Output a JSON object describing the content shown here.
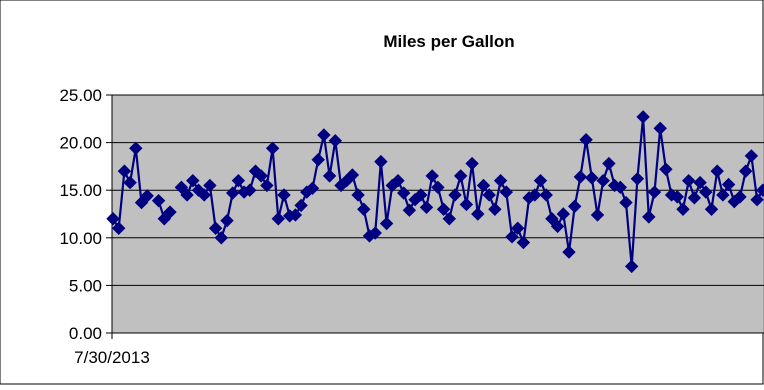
{
  "chart_data": {
    "type": "line",
    "title": "Miles per Gallon",
    "xlabel": "",
    "ylabel": "",
    "x_tick_labels": [
      "7/30/2013"
    ],
    "ylim": [
      0,
      25
    ],
    "yticks": [
      "0.00",
      "5.00",
      "10.00",
      "15.00",
      "20.00",
      "25.00"
    ],
    "grid": true,
    "plot_background": "#c0c0c0",
    "series_color": "#000080",
    "marker": "diamond",
    "series": [
      {
        "values": [
          [
            0,
            12.0
          ],
          [
            1,
            11.0
          ],
          [
            2,
            17.0
          ],
          [
            3,
            15.8
          ],
          [
            4,
            19.4
          ],
          [
            5,
            13.7
          ],
          [
            6,
            14.4
          ],
          [
            7,
            null
          ],
          [
            8,
            13.9
          ],
          [
            9,
            12.0
          ],
          [
            10,
            12.7
          ],
          [
            11,
            null
          ],
          [
            12,
            15.3
          ],
          [
            13,
            14.5
          ],
          [
            14,
            16.0
          ],
          [
            15,
            15.0
          ],
          [
            16,
            14.5
          ],
          [
            17,
            15.5
          ],
          [
            18,
            11.0
          ],
          [
            19,
            10.0
          ],
          [
            20,
            11.8
          ],
          [
            21,
            14.7
          ],
          [
            22,
            16.0
          ],
          [
            23,
            14.8
          ],
          [
            24,
            15.0
          ],
          [
            25,
            17.0
          ],
          [
            26,
            16.5
          ],
          [
            27,
            15.5
          ],
          [
            28,
            19.4
          ],
          [
            29,
            12.0
          ],
          [
            30,
            14.5
          ],
          [
            31,
            12.3
          ],
          [
            32,
            12.4
          ],
          [
            33,
            13.4
          ],
          [
            34,
            14.8
          ],
          [
            35,
            15.2
          ],
          [
            36,
            18.2
          ],
          [
            37,
            20.8
          ],
          [
            38,
            16.5
          ],
          [
            39,
            20.2
          ],
          [
            40,
            15.5
          ],
          [
            41,
            16.0
          ],
          [
            42,
            16.6
          ],
          [
            43,
            14.5
          ],
          [
            44,
            13.0
          ],
          [
            45,
            10.2
          ],
          [
            46,
            10.5
          ],
          [
            47,
            18.0
          ],
          [
            48,
            11.5
          ],
          [
            49,
            15.5
          ],
          [
            50,
            16.0
          ],
          [
            51,
            14.7
          ],
          [
            52,
            12.9
          ],
          [
            53,
            14.0
          ],
          [
            54,
            14.5
          ],
          [
            55,
            13.2
          ],
          [
            56,
            16.5
          ],
          [
            57,
            15.3
          ],
          [
            58,
            13.0
          ],
          [
            59,
            12.0
          ],
          [
            60,
            14.5
          ],
          [
            61,
            16.5
          ],
          [
            62,
            13.5
          ],
          [
            63,
            17.8
          ],
          [
            64,
            12.5
          ],
          [
            65,
            15.5
          ],
          [
            66,
            14.5
          ],
          [
            67,
            13.0
          ],
          [
            68,
            16.0
          ],
          [
            69,
            14.8
          ],
          [
            70,
            10.1
          ],
          [
            71,
            11.0
          ],
          [
            72,
            9.5
          ],
          [
            73,
            14.2
          ],
          [
            74,
            14.5
          ],
          [
            75,
            16.0
          ],
          [
            76,
            14.5
          ],
          [
            77,
            12.0
          ],
          [
            78,
            11.2
          ],
          [
            79,
            12.5
          ],
          [
            80,
            8.5
          ],
          [
            81,
            13.3
          ],
          [
            82,
            16.4
          ],
          [
            83,
            20.3
          ],
          [
            84,
            16.3
          ],
          [
            85,
            12.4
          ],
          [
            86,
            16.0
          ],
          [
            87,
            17.8
          ],
          [
            88,
            15.5
          ],
          [
            89,
            15.3
          ],
          [
            90,
            13.7
          ],
          [
            91,
            7.0
          ],
          [
            92,
            16.2
          ],
          [
            93,
            22.7
          ],
          [
            94,
            12.2
          ],
          [
            95,
            14.8
          ],
          [
            96,
            21.5
          ],
          [
            97,
            17.2
          ],
          [
            98,
            14.5
          ],
          [
            99,
            14.3
          ],
          [
            100,
            13.0
          ],
          [
            101,
            16.0
          ],
          [
            102,
            14.2
          ],
          [
            103,
            15.8
          ],
          [
            104,
            14.8
          ],
          [
            105,
            13.0
          ],
          [
            106,
            17.0
          ],
          [
            107,
            14.5
          ],
          [
            108,
            15.6
          ],
          [
            109,
            13.8
          ],
          [
            110,
            14.3
          ],
          [
            111,
            17.0
          ],
          [
            112,
            18.6
          ],
          [
            113,
            14.0
          ],
          [
            114,
            15.0
          ]
        ]
      }
    ]
  }
}
